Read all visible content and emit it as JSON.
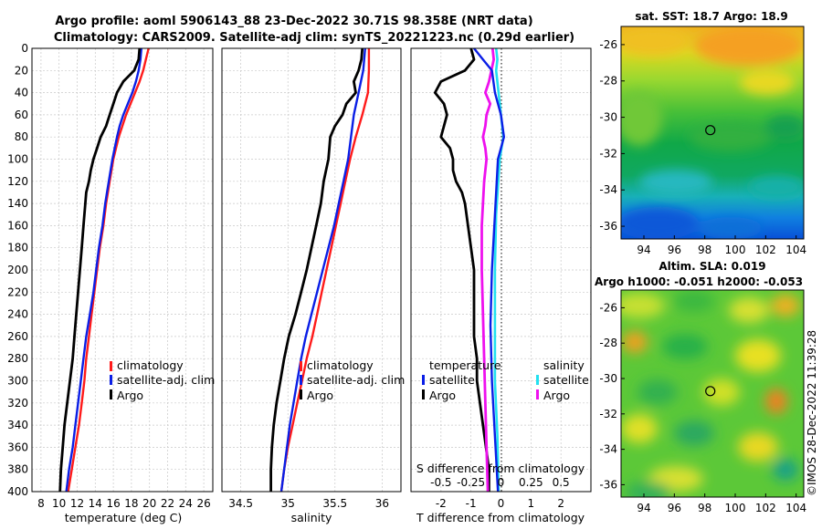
{
  "title": {
    "line1": "Argo profile: aoml 5906143_88 23-Dec-2022 30.71S 98.358E (NRT data)",
    "line2": "Climatology: CARS2009. Satellite-adj clim: synTS_20221223.nc (0.29d earlier)"
  },
  "credit": "©IMOS 28-Dec-2022 11:39:28",
  "colors": {
    "climatology": "#ff1a1a",
    "satellite": "#0a1ee6",
    "argo": "#000000",
    "salinity_satellite": "#22e0f0",
    "salinity_argo": "#ee10ee",
    "grid": "#c8c8c8"
  },
  "chart_data": [
    {
      "type": "line",
      "name": "temperature",
      "xlabel": "temperature (deg C)",
      "xlim": [
        7,
        27
      ],
      "xticks": [
        "8",
        "10",
        "12",
        "14",
        "16",
        "18",
        "20",
        "22",
        "24",
        "26"
      ],
      "ylim": [
        0,
        400
      ],
      "yticks": [
        "0",
        "20",
        "40",
        "60",
        "80",
        "100",
        "120",
        "140",
        "160",
        "180",
        "200",
        "220",
        "240",
        "260",
        "280",
        "300",
        "320",
        "340",
        "360",
        "380",
        "400"
      ],
      "legend": [
        "climatology",
        "satellite-adj. clim",
        "Argo"
      ],
      "series": [
        {
          "name": "climatology",
          "depth": [
            0,
            10,
            20,
            30,
            40,
            50,
            60,
            70,
            80,
            100,
            120,
            140,
            160,
            180,
            200,
            220,
            240,
            260,
            280,
            300,
            320,
            340,
            360,
            380,
            400
          ],
          "values": [
            19.9,
            19.6,
            19.3,
            18.9,
            18.4,
            17.9,
            17.4,
            17.0,
            16.6,
            16.0,
            15.6,
            15.2,
            14.9,
            14.5,
            14.2,
            13.9,
            13.6,
            13.3,
            13.0,
            12.8,
            12.5,
            12.2,
            11.8,
            11.4,
            11.0
          ]
        },
        {
          "name": "satellite-adj. clim",
          "depth": [
            0,
            10,
            20,
            30,
            40,
            50,
            60,
            70,
            80,
            100,
            120,
            140,
            160,
            180,
            200,
            220,
            240,
            260,
            280,
            300,
            320,
            340,
            360,
            380,
            400
          ],
          "values": [
            19.1,
            19.0,
            18.8,
            18.5,
            18.1,
            17.6,
            17.1,
            16.7,
            16.4,
            15.9,
            15.5,
            15.1,
            14.8,
            14.4,
            14.1,
            13.8,
            13.4,
            13.0,
            12.7,
            12.4,
            12.1,
            11.8,
            11.5,
            11.1,
            10.8
          ]
        },
        {
          "name": "Argo",
          "depth": [
            0,
            10,
            20,
            30,
            40,
            50,
            60,
            70,
            80,
            90,
            100,
            110,
            120,
            130,
            140,
            160,
            180,
            200,
            220,
            240,
            260,
            280,
            300,
            320,
            340,
            360,
            380,
            400
          ],
          "values": [
            18.9,
            18.8,
            18.3,
            17.1,
            16.4,
            16.0,
            15.6,
            15.2,
            14.6,
            14.2,
            13.8,
            13.5,
            13.3,
            13.0,
            12.9,
            12.7,
            12.5,
            12.3,
            12.1,
            11.9,
            11.7,
            11.5,
            11.2,
            10.9,
            10.6,
            10.4,
            10.2,
            10.1
          ]
        }
      ]
    },
    {
      "type": "line",
      "name": "salinity",
      "xlabel": "salinity",
      "xlim": [
        34.3,
        36.2
      ],
      "xticks": [
        "34.5",
        "35",
        "35.5",
        "36"
      ],
      "ylim": [
        0,
        400
      ],
      "legend": [
        "climatology",
        "satellite-adj. clim",
        "Argo"
      ],
      "series": [
        {
          "name": "climatology",
          "depth": [
            0,
            20,
            40,
            60,
            80,
            100,
            120,
            140,
            160,
            180,
            200,
            220,
            240,
            260,
            280,
            300,
            320,
            340,
            360,
            380,
            400
          ],
          "values": [
            35.86,
            35.86,
            35.85,
            35.79,
            35.72,
            35.66,
            35.61,
            35.56,
            35.51,
            35.46,
            35.41,
            35.36,
            35.31,
            35.26,
            35.2,
            35.15,
            35.1,
            35.05,
            35.0,
            34.96,
            34.93
          ]
        },
        {
          "name": "satellite-adj. clim",
          "depth": [
            0,
            20,
            40,
            60,
            80,
            100,
            120,
            140,
            160,
            180,
            200,
            220,
            240,
            260,
            280,
            300,
            320,
            340,
            360,
            380,
            400
          ],
          "values": [
            35.82,
            35.8,
            35.75,
            35.7,
            35.67,
            35.64,
            35.59,
            35.54,
            35.49,
            35.43,
            35.37,
            35.31,
            35.25,
            35.19,
            35.14,
            35.1,
            35.06,
            35.02,
            34.99,
            34.96,
            34.93
          ]
        },
        {
          "name": "Argo",
          "depth": [
            0,
            10,
            20,
            30,
            40,
            50,
            60,
            70,
            80,
            100,
            120,
            140,
            160,
            180,
            200,
            220,
            240,
            260,
            280,
            300,
            320,
            340,
            360,
            380,
            400
          ],
          "values": [
            35.79,
            35.78,
            35.75,
            35.7,
            35.72,
            35.62,
            35.58,
            35.5,
            35.45,
            35.43,
            35.38,
            35.35,
            35.3,
            35.25,
            35.2,
            35.14,
            35.08,
            35.01,
            34.96,
            34.92,
            34.88,
            34.85,
            34.83,
            34.82,
            34.82
          ]
        }
      ]
    },
    {
      "type": "line",
      "name": "difference-from-climatology",
      "xlabel": "T difference from climatology",
      "xlim": [
        -3,
        3
      ],
      "xticks": [
        "-2",
        "-1",
        "0",
        "1",
        "2"
      ],
      "top_label": "S difference from climatology",
      "top_ticks": [
        "-0.5",
        "-0.25",
        "0",
        "0.25",
        "0.5"
      ],
      "ylim": [
        0,
        400
      ],
      "legend_left": [
        "temperature",
        "satellite",
        "Argo"
      ],
      "legend_right": [
        "salinity",
        "satellite",
        "Argo"
      ],
      "series": [
        {
          "name": "temperature satellite",
          "depth": [
            0,
            10,
            20,
            40,
            60,
            80,
            100,
            150,
            200,
            250,
            300,
            350,
            400
          ],
          "values": [
            -0.9,
            -0.6,
            -0.3,
            -0.2,
            0.0,
            0.1,
            -0.1,
            -0.2,
            -0.3,
            -0.35,
            -0.3,
            -0.2,
            -0.1
          ]
        },
        {
          "name": "temperature Argo",
          "depth": [
            0,
            10,
            20,
            30,
            40,
            50,
            60,
            70,
            80,
            90,
            100,
            110,
            120,
            130,
            140,
            160,
            180,
            200,
            220,
            240,
            260,
            280,
            300,
            320,
            340,
            360,
            380,
            400
          ],
          "values": [
            -1.0,
            -0.9,
            -1.2,
            -2.0,
            -2.2,
            -1.9,
            -1.8,
            -1.9,
            -2.0,
            -1.7,
            -1.6,
            -1.6,
            -1.5,
            -1.3,
            -1.2,
            -1.1,
            -1.0,
            -0.9,
            -0.9,
            -0.9,
            -0.9,
            -0.8,
            -0.8,
            -0.7,
            -0.6,
            -0.5,
            -0.4,
            -0.4
          ]
        },
        {
          "name": "salinity satellite",
          "depth": [
            0,
            10,
            20,
            40,
            60,
            80,
            100,
            150,
            200,
            250,
            300,
            350,
            400
          ],
          "values": [
            -0.04,
            -0.03,
            -0.04,
            -0.02,
            0.0,
            0.02,
            -0.01,
            -0.04,
            -0.05,
            -0.05,
            -0.05,
            -0.03,
            -0.02
          ]
        },
        {
          "name": "salinity Argo",
          "depth": [
            0,
            10,
            20,
            30,
            40,
            50,
            60,
            70,
            80,
            90,
            100,
            120,
            140,
            160,
            180,
            200,
            240,
            280,
            320,
            360,
            400
          ],
          "values": [
            -0.07,
            -0.06,
            -0.08,
            -0.1,
            -0.13,
            -0.09,
            -0.12,
            -0.13,
            -0.15,
            -0.13,
            -0.12,
            -0.14,
            -0.15,
            -0.16,
            -0.16,
            -0.16,
            -0.15,
            -0.14,
            -0.13,
            -0.12,
            -0.11
          ]
        }
      ]
    },
    {
      "type": "heatmap",
      "name": "sat-sst-map",
      "title": "sat. SST: 18.7 Argo: 18.9",
      "xlim": [
        92.5,
        104.5
      ],
      "ylim": [
        -36.7,
        -25
      ],
      "xticks": [
        "94",
        "96",
        "98",
        "100",
        "102",
        "104"
      ],
      "yticks": [
        "-26",
        "-28",
        "-30",
        "-32",
        "-34",
        "-36"
      ],
      "marker": {
        "lon": 98.36,
        "lat": -30.71
      }
    },
    {
      "type": "heatmap",
      "name": "altimetry-sla-map",
      "title": "Altim. SLA: 0.019",
      "subtitle": "Argo h1000: -0.051 h2000: -0.053",
      "xlim": [
        92.5,
        104.5
      ],
      "ylim": [
        -36.7,
        -25
      ],
      "xticks": [
        "94",
        "96",
        "98",
        "100",
        "102",
        "104"
      ],
      "yticks": [
        "-26",
        "-28",
        "-30",
        "-32",
        "-34",
        "-36"
      ],
      "marker": {
        "lon": 98.36,
        "lat": -30.71
      }
    }
  ]
}
